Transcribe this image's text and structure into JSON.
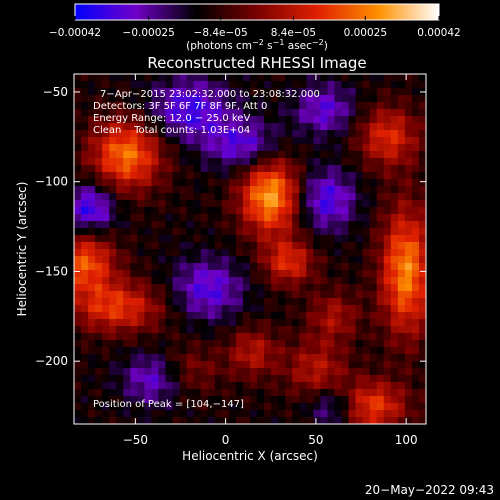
{
  "colorbar": {
    "ticks": [
      -0.00042,
      -0.00025,
      -8.4e-05,
      8.4e-05,
      0.00025,
      0.00042
    ],
    "tick_labels": [
      "−0.00042",
      "−0.00025",
      "−8.4e−05",
      "8.4e−05",
      "0.00025",
      "0.00042"
    ],
    "min": -0.00042,
    "max": 0.00042,
    "colors": [
      "#0000ff",
      "#7000c8",
      "#000000",
      "#7a0000",
      "#e02000",
      "#ff9000",
      "#ffffff"
    ],
    "units_main": "(photons cm",
    "units_sup1": "−2",
    "units_mid1": " s",
    "units_sup2": "−1",
    "units_mid2": " asec",
    "units_sup3": "−2",
    "units_end": ")"
  },
  "chart_data": {
    "type": "heatmap",
    "title": "Reconstructed RHESSI Image",
    "xlabel": "Heliocentric X (arcsec)",
    "ylabel": "Heliocentric Y (arcsec)",
    "xlim": [
      -84,
      111
    ],
    "ylim": [
      -235,
      -40
    ],
    "xticks": [
      -50,
      0,
      50,
      100
    ],
    "xtick_labels": [
      "−50",
      "0",
      "50",
      "100"
    ],
    "yticks": [
      -50,
      -100,
      -150,
      -200
    ],
    "ytick_labels": [
      "−50",
      "−100",
      "−150",
      "−200"
    ],
    "sources": [
      {
        "x": 25,
        "y": -108,
        "amp": 1.0,
        "sx": 12,
        "sy": 15
      },
      {
        "x": 35,
        "y": -145,
        "amp": 0.6,
        "sx": 10,
        "sy": 9
      },
      {
        "x": -55,
        "y": -85,
        "amp": 0.85,
        "sx": 14,
        "sy": 14
      },
      {
        "x": -78,
        "y": -145,
        "amp": 0.75,
        "sx": 12,
        "sy": 12
      },
      {
        "x": -60,
        "y": -170,
        "amp": 0.65,
        "sx": 18,
        "sy": 10
      },
      {
        "x": 100,
        "y": -150,
        "amp": 0.9,
        "sx": 10,
        "sy": 25
      },
      {
        "x": 90,
        "y": -75,
        "amp": 0.6,
        "sx": 12,
        "sy": 12
      },
      {
        "x": 80,
        "y": -225,
        "amp": 0.7,
        "sx": 14,
        "sy": 10
      },
      {
        "x": 50,
        "y": -205,
        "amp": 0.45,
        "sx": 12,
        "sy": 12
      },
      {
        "x": 15,
        "y": -195,
        "amp": 0.45,
        "sx": 10,
        "sy": 10
      },
      {
        "x": 60,
        "y": -175,
        "amp": 0.4,
        "sx": 10,
        "sy": 10
      },
      {
        "x": -20,
        "y": -205,
        "amp": 0.3,
        "sx": 12,
        "sy": 10
      },
      {
        "x": -20,
        "y": -60,
        "amp": -0.55,
        "sx": 16,
        "sy": 12
      },
      {
        "x": 10,
        "y": -80,
        "amp": -0.5,
        "sx": 14,
        "sy": 10
      },
      {
        "x": -75,
        "y": -115,
        "amp": -0.6,
        "sx": 10,
        "sy": 10
      },
      {
        "x": 55,
        "y": -110,
        "amp": -0.55,
        "sx": 12,
        "sy": 12
      },
      {
        "x": -10,
        "y": -160,
        "amp": -0.5,
        "sx": 14,
        "sy": 12
      },
      {
        "x": 55,
        "y": -60,
        "amp": -0.45,
        "sx": 12,
        "sy": 10
      },
      {
        "x": -40,
        "y": -210,
        "amp": -0.45,
        "sx": 12,
        "sy": 10
      },
      {
        "x": 60,
        "y": -225,
        "amp": -0.5,
        "sx": 10,
        "sy": 8
      }
    ]
  },
  "annotations": {
    "line1": "7−Apr−2015 23:02:32.000 to 23:08:32.000",
    "line2": "Detectors: 3F 5F 6F 7F 8F 9F, Att 0",
    "line3": "Energy Range: 12.0 − 25.0 keV",
    "line4": "Clean    Total counts: 1.03E+04",
    "peak": "Position of Peak = [104,−147]"
  },
  "footer": {
    "timestamp": "20−May−2022 09:43"
  }
}
